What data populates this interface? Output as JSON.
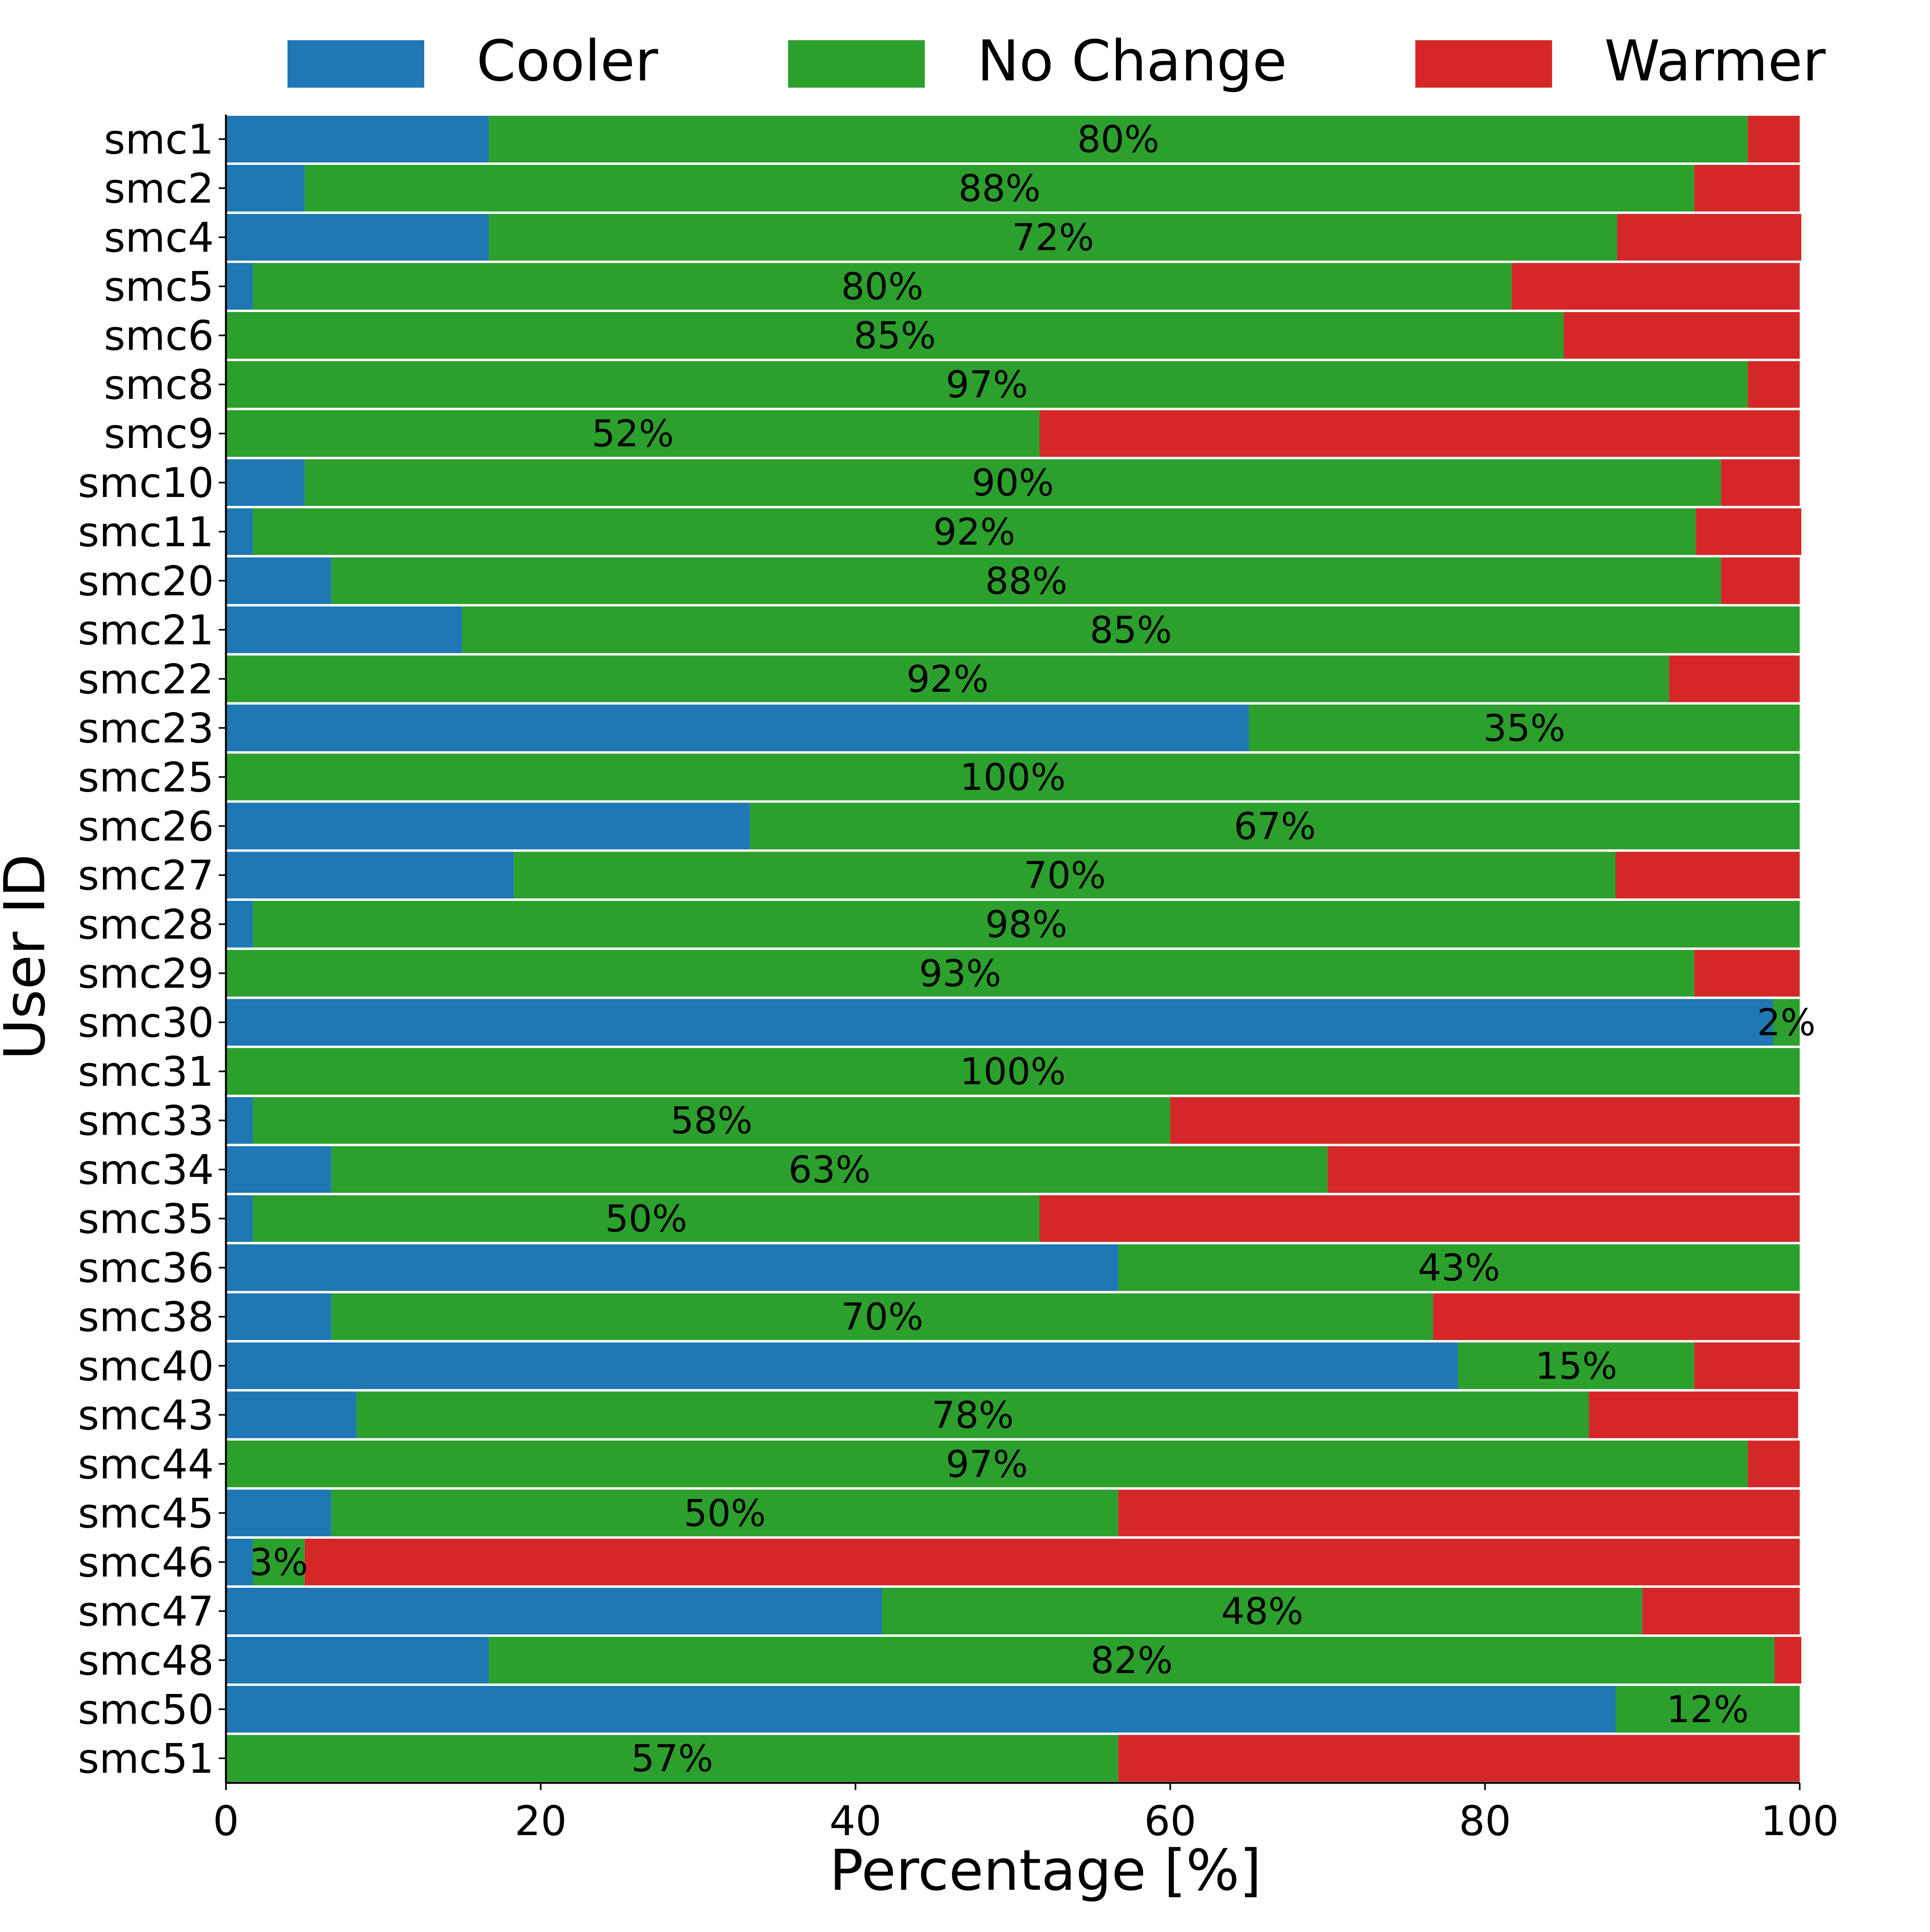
{
  "chart_data": {
    "type": "bar",
    "orientation": "horizontal",
    "stacked": true,
    "xlabel": "Percentage [%]",
    "ylabel": "User ID",
    "xlim": [
      0,
      100
    ],
    "xticks": [
      0,
      20,
      40,
      60,
      80,
      100
    ],
    "grid": false,
    "legend": {
      "placement": "top",
      "entries": [
        "Cooler",
        "No Change",
        "Warmer"
      ]
    },
    "colors": {
      "Cooler": "#1f77b4",
      "No Change": "#2ca02c",
      "Warmer": "#d62728"
    },
    "categories": [
      "smc1",
      "smc2",
      "smc4",
      "smc5",
      "smc6",
      "smc8",
      "smc9",
      "smc10",
      "smc11",
      "smc20",
      "smc21",
      "smc22",
      "smc23",
      "smc25",
      "smc26",
      "smc27",
      "smc28",
      "smc29",
      "smc30",
      "smc31",
      "smc33",
      "smc34",
      "smc35",
      "smc36",
      "smc38",
      "smc40",
      "smc43",
      "smc44",
      "smc45",
      "smc46",
      "smc47",
      "smc48",
      "smc50",
      "smc51"
    ],
    "series": [
      {
        "name": "Cooler",
        "values": [
          16.7,
          5.0,
          16.7,
          1.7,
          0.0,
          0.0,
          0.0,
          5.0,
          1.7,
          6.7,
          15.0,
          0.0,
          65.0,
          0.0,
          33.3,
          18.3,
          1.7,
          0.0,
          98.3,
          0.0,
          1.7,
          6.7,
          1.7,
          56.7,
          6.7,
          78.3,
          8.3,
          0.0,
          6.7,
          1.7,
          41.7,
          16.7,
          88.3,
          0.0
        ]
      },
      {
        "name": "No Change",
        "values": [
          80.0,
          88.3,
          71.7,
          80.0,
          85.0,
          96.7,
          51.7,
          90.0,
          91.7,
          88.3,
          85.0,
          91.7,
          35.0,
          100.0,
          66.7,
          70.0,
          98.3,
          93.3,
          1.7,
          100.0,
          58.3,
          63.3,
          50.0,
          43.3,
          70.0,
          15.0,
          78.3,
          96.7,
          50.0,
          3.3,
          48.3,
          81.7,
          11.7,
          56.7
        ]
      },
      {
        "name": "Warmer",
        "values": [
          3.3,
          6.7,
          11.7,
          18.3,
          15.0,
          3.3,
          48.3,
          5.0,
          6.7,
          5.0,
          0.0,
          8.3,
          0.0,
          0.0,
          0.0,
          11.7,
          0.0,
          6.7,
          0.0,
          0.0,
          40.0,
          30.0,
          48.3,
          0.0,
          23.3,
          6.7,
          13.3,
          3.3,
          43.3,
          95.0,
          10.0,
          1.7,
          0.0,
          43.3
        ]
      }
    ],
    "data_labels": [
      "80%",
      "88%",
      "72%",
      "80%",
      "85%",
      "97%",
      "52%",
      "90%",
      "92%",
      "88%",
      "85%",
      "92%",
      "35%",
      "100%",
      "67%",
      "70%",
      "98%",
      "93%",
      "2%",
      "100%",
      "58%",
      "63%",
      "50%",
      "43%",
      "70%",
      "15%",
      "78%",
      "97%",
      "50%",
      "3%",
      "48%",
      "82%",
      "12%",
      "57%"
    ]
  }
}
